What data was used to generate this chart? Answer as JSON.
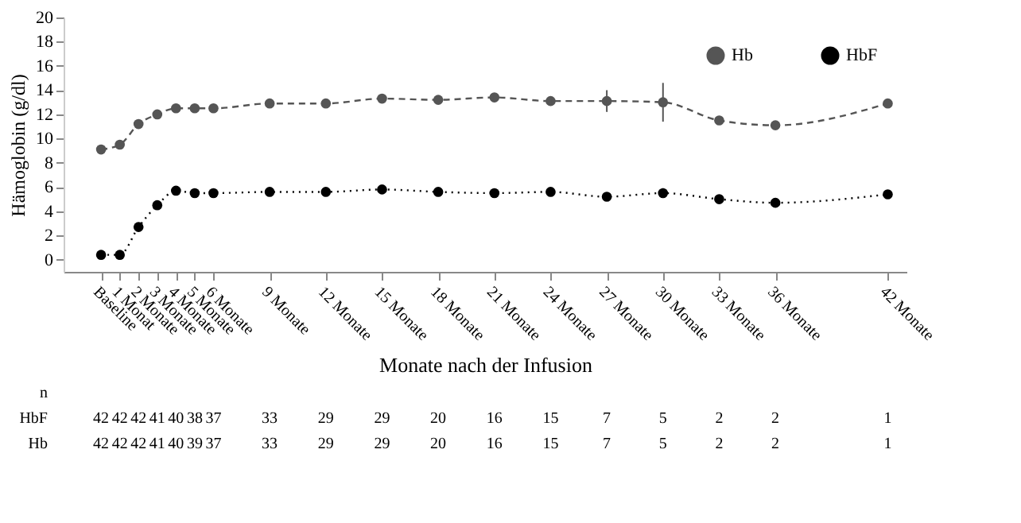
{
  "chart_data": {
    "type": "line",
    "xlabel": "Monate nach der Infusion",
    "ylabel": "Hämoglobin (g/dl)",
    "x": [
      0,
      1,
      2,
      3,
      4,
      5,
      6,
      9,
      12,
      15,
      18,
      21,
      24,
      27,
      30,
      33,
      36,
      42
    ],
    "xlim": [
      -2,
      43
    ],
    "xticks": [
      {
        "value": 0,
        "label": "Baseline"
      },
      {
        "value": 1,
        "label": "1 Monat"
      },
      {
        "value": 2,
        "label": "2 Monate"
      },
      {
        "value": 3,
        "label": "3 Monate"
      },
      {
        "value": 4,
        "label": "4 Monate"
      },
      {
        "value": 5,
        "label": "5 Monate"
      },
      {
        "value": 6,
        "label": "6 Monate"
      },
      {
        "value": 9,
        "label": "9 Monate"
      },
      {
        "value": 12,
        "label": "12 Monate"
      },
      {
        "value": 15,
        "label": "15 Monate"
      },
      {
        "value": 18,
        "label": "18 Monate"
      },
      {
        "value": 21,
        "label": "21 Monate"
      },
      {
        "value": 24,
        "label": "24 Monate"
      },
      {
        "value": 27,
        "label": "27 Monate"
      },
      {
        "value": 30,
        "label": "30 Monate"
      },
      {
        "value": 33,
        "label": "33 Monate"
      },
      {
        "value": 36,
        "label": "36 Monate"
      },
      {
        "value": 42,
        "label": "42 Monate"
      }
    ],
    "ylim": [
      -1,
      20
    ],
    "yticks": [
      0,
      2,
      4,
      6,
      8,
      10,
      12,
      14,
      16,
      18,
      20
    ],
    "series": [
      {
        "name": "Hb",
        "color": "#555555",
        "line_style": "dashed",
        "marker": "circle",
        "values": [
          9.1,
          9.5,
          11.2,
          12.0,
          12.5,
          12.5,
          12.5,
          12.9,
          12.9,
          13.3,
          13.2,
          13.4,
          13.1,
          13.1,
          13.0,
          11.5,
          11.1,
          12.9
        ],
        "errors": [
          null,
          null,
          null,
          null,
          null,
          null,
          null,
          null,
          null,
          null,
          null,
          0.3,
          0.3,
          0.9,
          1.6,
          null,
          null,
          null
        ]
      },
      {
        "name": "HbF",
        "color": "#000000",
        "line_style": "dotted",
        "marker": "circle",
        "values": [
          0.4,
          0.4,
          2.7,
          4.5,
          5.7,
          5.5,
          5.5,
          5.6,
          5.6,
          5.8,
          5.6,
          5.5,
          5.6,
          5.2,
          5.5,
          5.0,
          4.7,
          5.4
        ],
        "errors": [
          null,
          null,
          null,
          null,
          null,
          null,
          null,
          null,
          null,
          null,
          null,
          null,
          null,
          0.3,
          0.4,
          null,
          null,
          null
        ]
      }
    ],
    "legend": "top right",
    "grid": false,
    "annotations": [
      "n",
      "HbF",
      "Hb",
      "42",
      "42",
      "42",
      "41",
      "40",
      "38",
      "37",
      "33",
      "29",
      "29",
      "20",
      "16",
      "15",
      "7",
      "5",
      "2",
      "2",
      "1",
      "42",
      "42",
      "42",
      "41",
      "40",
      "39",
      "37",
      "33",
      "29",
      "29",
      "20",
      "16",
      "15",
      "7",
      "5",
      "2",
      "2",
      "1"
    ]
  }
}
